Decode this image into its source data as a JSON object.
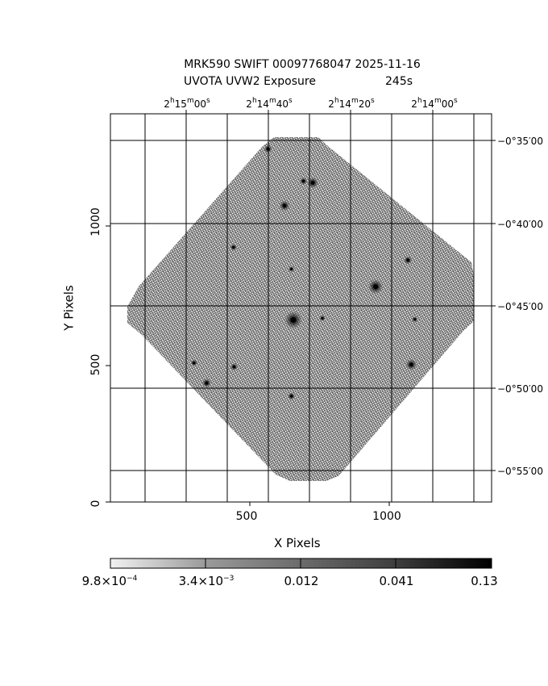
{
  "header": {
    "title": "MRK590 SWIFT 00097768047 2025-11-16",
    "subtitle_label": "UVOTA UVW2 Exposure",
    "exposure": "245s"
  },
  "ra_ticks": [
    {
      "h": "2",
      "m": "15",
      "s": "00"
    },
    {
      "h": "2",
      "m": "14",
      "s": "40"
    },
    {
      "h": "2",
      "m": "14",
      "s": "20"
    },
    {
      "h": "2",
      "m": "14",
      "s": "00"
    }
  ],
  "dec_ticks": [
    "−0°35′00",
    "−0°40′00",
    "−0°45′00",
    "−0°50′00",
    "−0°55′00"
  ],
  "y_ticks": [
    "1000",
    "500",
    "0"
  ],
  "x_ticks": [
    "500",
    "1000"
  ],
  "axes": {
    "xlabel": "X Pixels",
    "ylabel": "Y Pixels"
  },
  "colorbar": {
    "scale": "log",
    "ticks": [
      {
        "base": "9.8×10",
        "exp": "−4",
        "label": ""
      },
      {
        "base": "3.4×10",
        "exp": "−3",
        "label": ""
      },
      {
        "base": "",
        "exp": "",
        "label": "0.012"
      },
      {
        "base": "",
        "exp": "",
        "label": "0.041"
      },
      {
        "base": "",
        "exp": "",
        "label": "0.13"
      }
    ]
  },
  "image": {
    "x_range": [
      0,
      1390
    ],
    "y_range": [
      0,
      1390
    ],
    "sources": [
      {
        "x": 667,
        "y": 652,
        "strength": 1.0
      },
      {
        "x": 967,
        "y": 771,
        "strength": 0.8
      },
      {
        "x": 738,
        "y": 1143,
        "strength": 0.55
      },
      {
        "x": 635,
        "y": 1061,
        "strength": 0.5
      },
      {
        "x": 1097,
        "y": 492,
        "strength": 0.55
      },
      {
        "x": 351,
        "y": 426,
        "strength": 0.4
      },
      {
        "x": 1085,
        "y": 866,
        "strength": 0.35
      },
      {
        "x": 575,
        "y": 1264,
        "strength": 0.35
      },
      {
        "x": 704,
        "y": 1149,
        "strength": 0.3
      },
      {
        "x": 451,
        "y": 484,
        "strength": 0.3
      },
      {
        "x": 660,
        "y": 379,
        "strength": 0.3
      },
      {
        "x": 449,
        "y": 912,
        "strength": 0.25
      },
      {
        "x": 305,
        "y": 498,
        "strength": 0.25
      },
      {
        "x": 773,
        "y": 658,
        "strength": 0.2
      },
      {
        "x": 1110,
        "y": 654,
        "strength": 0.2
      },
      {
        "x": 660,
        "y": 834,
        "strength": 0.2
      }
    ]
  }
}
